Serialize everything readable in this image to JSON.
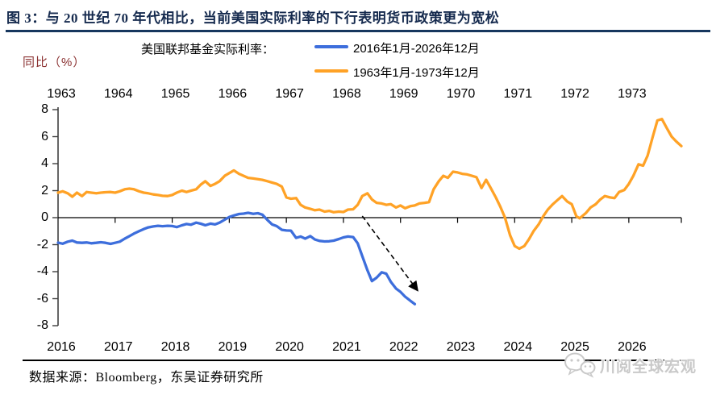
{
  "header": {
    "title": "图 3：与 20 世纪 70 年代相比，当前美国实际利率的下行表明货币政策更为宽松"
  },
  "y_axis_label": "同比（%）",
  "legend": {
    "series_label": "美国联邦基金实际利率：",
    "blue_label": "2016年1月-2026年12月",
    "orange_label": "1963年1月-1973年12月"
  },
  "footer": {
    "source": "数据来源：Bloomberg，东吴证券研究所",
    "watermark": "川阅全球宏观"
  },
  "colors": {
    "blue": "#3d6edc",
    "orange": "#ffa226",
    "title_navy": "#17375e",
    "ylabel_red": "#8b3232",
    "axis_black": "#000000",
    "watermark_gray": "#c9c9c9"
  },
  "chart_data": {
    "type": "line",
    "title": "美国联邦基金实际利率",
    "ylabel": "同比（%）",
    "ylim": [
      -8,
      8
    ],
    "y_ticks": [
      8,
      6,
      4,
      2,
      0,
      -2,
      -4,
      -6,
      -8
    ],
    "grid": false,
    "legend_position": "top",
    "x_axis_bottom": {
      "range": [
        2016.0,
        2026.92
      ],
      "years": [
        2016,
        2017,
        2018,
        2019,
        2020,
        2021,
        2022,
        2023,
        2024,
        2025,
        2026
      ]
    },
    "x_axis_top": {
      "range": [
        1963.0,
        1973.92
      ],
      "years": [
        1963,
        1964,
        1965,
        1966,
        1967,
        1968,
        1969,
        1970,
        1971,
        1972,
        1973
      ]
    },
    "series": [
      {
        "name": "2016年1月-2026年12月",
        "color_key": "blue",
        "axis": "bottom",
        "points": [
          [
            2016.0,
            -1.85
          ],
          [
            2016.08,
            -1.93
          ],
          [
            2016.17,
            -1.78
          ],
          [
            2016.25,
            -1.7
          ],
          [
            2016.33,
            -1.84
          ],
          [
            2016.42,
            -1.86
          ],
          [
            2016.5,
            -1.84
          ],
          [
            2016.58,
            -1.9
          ],
          [
            2016.67,
            -1.86
          ],
          [
            2016.75,
            -1.82
          ],
          [
            2016.83,
            -1.86
          ],
          [
            2016.92,
            -1.94
          ],
          [
            2017.0,
            -1.86
          ],
          [
            2017.08,
            -1.78
          ],
          [
            2017.17,
            -1.55
          ],
          [
            2017.25,
            -1.37
          ],
          [
            2017.33,
            -1.18
          ],
          [
            2017.42,
            -1.0
          ],
          [
            2017.5,
            -0.85
          ],
          [
            2017.58,
            -0.72
          ],
          [
            2017.67,
            -0.65
          ],
          [
            2017.75,
            -0.6
          ],
          [
            2017.83,
            -0.63
          ],
          [
            2017.92,
            -0.6
          ],
          [
            2018.0,
            -0.62
          ],
          [
            2018.08,
            -0.7
          ],
          [
            2018.17,
            -0.57
          ],
          [
            2018.25,
            -0.47
          ],
          [
            2018.33,
            -0.52
          ],
          [
            2018.42,
            -0.37
          ],
          [
            2018.5,
            -0.45
          ],
          [
            2018.58,
            -0.56
          ],
          [
            2018.67,
            -0.44
          ],
          [
            2018.75,
            -0.5
          ],
          [
            2018.83,
            -0.37
          ],
          [
            2018.92,
            -0.15
          ],
          [
            2019.0,
            0.05
          ],
          [
            2019.08,
            0.16
          ],
          [
            2019.17,
            0.27
          ],
          [
            2019.25,
            0.3
          ],
          [
            2019.33,
            0.36
          ],
          [
            2019.42,
            0.28
          ],
          [
            2019.5,
            0.33
          ],
          [
            2019.58,
            0.22
          ],
          [
            2019.67,
            -0.18
          ],
          [
            2019.75,
            -0.5
          ],
          [
            2019.83,
            -0.62
          ],
          [
            2019.92,
            -0.9
          ],
          [
            2020.0,
            -0.95
          ],
          [
            2020.08,
            -0.96
          ],
          [
            2020.17,
            -1.5
          ],
          [
            2020.25,
            -1.4
          ],
          [
            2020.33,
            -1.55
          ],
          [
            2020.42,
            -1.37
          ],
          [
            2020.5,
            -1.62
          ],
          [
            2020.58,
            -1.72
          ],
          [
            2020.67,
            -1.76
          ],
          [
            2020.75,
            -1.75
          ],
          [
            2020.83,
            -1.7
          ],
          [
            2020.92,
            -1.58
          ],
          [
            2021.0,
            -1.46
          ],
          [
            2021.08,
            -1.4
          ],
          [
            2021.17,
            -1.44
          ],
          [
            2021.25,
            -1.9
          ],
          [
            2021.33,
            -2.85
          ],
          [
            2021.42,
            -3.9
          ],
          [
            2021.5,
            -4.7
          ],
          [
            2021.58,
            -4.45
          ],
          [
            2021.67,
            -4.05
          ],
          [
            2021.75,
            -4.15
          ],
          [
            2021.83,
            -4.75
          ],
          [
            2021.92,
            -5.25
          ],
          [
            2022.0,
            -5.5
          ],
          [
            2022.08,
            -5.85
          ],
          [
            2022.17,
            -6.15
          ],
          [
            2022.25,
            -6.4
          ]
        ]
      },
      {
        "name": "1963年1月-1973年12月",
        "color_key": "orange",
        "axis": "top",
        "points": [
          [
            1963.0,
            1.85
          ],
          [
            1963.08,
            1.95
          ],
          [
            1963.17,
            1.8
          ],
          [
            1963.25,
            1.55
          ],
          [
            1963.33,
            1.85
          ],
          [
            1963.42,
            1.6
          ],
          [
            1963.5,
            1.9
          ],
          [
            1963.58,
            1.85
          ],
          [
            1963.67,
            1.8
          ],
          [
            1963.75,
            1.85
          ],
          [
            1963.83,
            1.88
          ],
          [
            1963.92,
            1.9
          ],
          [
            1964.0,
            1.85
          ],
          [
            1964.08,
            1.95
          ],
          [
            1964.17,
            2.1
          ],
          [
            1964.25,
            2.15
          ],
          [
            1964.33,
            2.1
          ],
          [
            1964.42,
            1.95
          ],
          [
            1964.5,
            1.85
          ],
          [
            1964.58,
            1.8
          ],
          [
            1964.67,
            1.72
          ],
          [
            1964.75,
            1.68
          ],
          [
            1964.83,
            1.62
          ],
          [
            1964.92,
            1.6
          ],
          [
            1965.0,
            1.68
          ],
          [
            1965.08,
            1.85
          ],
          [
            1965.17,
            2.0
          ],
          [
            1965.25,
            1.9
          ],
          [
            1965.33,
            2.0
          ],
          [
            1965.42,
            2.1
          ],
          [
            1965.5,
            2.45
          ],
          [
            1965.58,
            2.7
          ],
          [
            1965.67,
            2.35
          ],
          [
            1965.75,
            2.5
          ],
          [
            1965.83,
            2.7
          ],
          [
            1965.92,
            3.1
          ],
          [
            1966.0,
            3.3
          ],
          [
            1966.08,
            3.5
          ],
          [
            1966.17,
            3.25
          ],
          [
            1966.25,
            3.1
          ],
          [
            1966.33,
            2.95
          ],
          [
            1966.42,
            2.9
          ],
          [
            1966.5,
            2.85
          ],
          [
            1966.58,
            2.8
          ],
          [
            1966.67,
            2.7
          ],
          [
            1966.75,
            2.6
          ],
          [
            1966.83,
            2.5
          ],
          [
            1966.92,
            2.3
          ],
          [
            1967.0,
            1.5
          ],
          [
            1967.08,
            1.4
          ],
          [
            1967.17,
            1.45
          ],
          [
            1967.25,
            0.95
          ],
          [
            1967.33,
            0.75
          ],
          [
            1967.42,
            0.65
          ],
          [
            1967.5,
            0.55
          ],
          [
            1967.58,
            0.6
          ],
          [
            1967.67,
            0.45
          ],
          [
            1967.75,
            0.5
          ],
          [
            1967.83,
            0.4
          ],
          [
            1967.92,
            0.45
          ],
          [
            1968.0,
            0.42
          ],
          [
            1968.08,
            0.6
          ],
          [
            1968.17,
            0.62
          ],
          [
            1968.25,
            0.95
          ],
          [
            1968.33,
            1.6
          ],
          [
            1968.42,
            1.8
          ],
          [
            1968.5,
            1.35
          ],
          [
            1968.58,
            1.1
          ],
          [
            1968.67,
            1.05
          ],
          [
            1968.75,
            0.95
          ],
          [
            1968.83,
            1.0
          ],
          [
            1968.92,
            0.75
          ],
          [
            1969.0,
            0.9
          ],
          [
            1969.08,
            0.7
          ],
          [
            1969.17,
            0.85
          ],
          [
            1969.25,
            0.9
          ],
          [
            1969.33,
            1.05
          ],
          [
            1969.42,
            1.1
          ],
          [
            1969.5,
            1.15
          ],
          [
            1969.58,
            2.1
          ],
          [
            1969.67,
            2.7
          ],
          [
            1969.75,
            3.1
          ],
          [
            1969.83,
            2.95
          ],
          [
            1969.92,
            3.4
          ],
          [
            1970.0,
            3.35
          ],
          [
            1970.08,
            3.25
          ],
          [
            1970.17,
            3.2
          ],
          [
            1970.25,
            3.1
          ],
          [
            1970.33,
            3.0
          ],
          [
            1970.42,
            2.2
          ],
          [
            1970.5,
            2.8
          ],
          [
            1970.58,
            2.2
          ],
          [
            1970.67,
            1.5
          ],
          [
            1970.75,
            0.8
          ],
          [
            1970.83,
            0.0
          ],
          [
            1970.92,
            -1.3
          ],
          [
            1971.0,
            -2.1
          ],
          [
            1971.08,
            -2.3
          ],
          [
            1971.17,
            -2.1
          ],
          [
            1971.25,
            -1.6
          ],
          [
            1971.33,
            -1.0
          ],
          [
            1971.42,
            -0.5
          ],
          [
            1971.5,
            0.1
          ],
          [
            1971.58,
            0.6
          ],
          [
            1971.67,
            1.0
          ],
          [
            1971.75,
            1.3
          ],
          [
            1971.83,
            1.6
          ],
          [
            1971.92,
            1.2
          ],
          [
            1972.0,
            1.0
          ],
          [
            1972.08,
            0.1
          ],
          [
            1972.14,
            -0.05
          ],
          [
            1972.25,
            0.35
          ],
          [
            1972.33,
            0.75
          ],
          [
            1972.42,
            1.0
          ],
          [
            1972.5,
            1.35
          ],
          [
            1972.58,
            1.6
          ],
          [
            1972.67,
            1.5
          ],
          [
            1972.75,
            1.45
          ],
          [
            1972.83,
            1.9
          ],
          [
            1972.92,
            2.05
          ],
          [
            1973.0,
            2.5
          ],
          [
            1973.08,
            3.1
          ],
          [
            1973.17,
            3.95
          ],
          [
            1973.25,
            3.85
          ],
          [
            1973.33,
            4.6
          ],
          [
            1973.42,
            6.0
          ],
          [
            1973.5,
            7.2
          ],
          [
            1973.58,
            7.3
          ],
          [
            1973.67,
            6.6
          ],
          [
            1973.75,
            6.0
          ],
          [
            1973.83,
            5.65
          ],
          [
            1973.92,
            5.3
          ]
        ]
      }
    ],
    "annotation_arrow": {
      "axis": "bottom",
      "from": [
        2021.33,
        0.0
      ],
      "to": [
        2022.3,
        -5.4
      ],
      "style": "dashed"
    }
  }
}
